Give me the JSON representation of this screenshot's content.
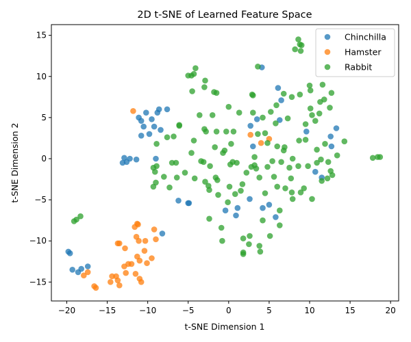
{
  "chart_data": {
    "type": "scatter",
    "title": "2D t-SNE of Learned Feature Space",
    "xlabel": "t-SNE Dimension 1",
    "ylabel": "t-SNE Dimension 2",
    "xlim": [
      -21.9,
      21.0
    ],
    "ylim": [
      -17.3,
      16.3
    ],
    "xticks": [
      -20,
      -15,
      -10,
      -5,
      0,
      5,
      10,
      15,
      20
    ],
    "yticks": [
      -15,
      -10,
      -5,
      0,
      5,
      10,
      15
    ],
    "grid": false,
    "legend_position": "top-right",
    "series": [
      {
        "name": "Chinchilla",
        "color": "#1f77b4",
        "points": [
          [
            -19.8,
            -11.3
          ],
          [
            -19.6,
            -11.5
          ],
          [
            -19.3,
            -13.5
          ],
          [
            -18.6,
            -13.8
          ],
          [
            -18.2,
            -13.4
          ],
          [
            -17.4,
            -13.1
          ],
          [
            -8.2,
            -9.1
          ],
          [
            -13.1,
            -0.5
          ],
          [
            -12.9,
            0.1
          ],
          [
            -12.6,
            -0.4
          ],
          [
            -12.2,
            0.0
          ],
          [
            -11.4,
            -0.1
          ],
          [
            -11.1,
            5.0
          ],
          [
            -10.8,
            4.6
          ],
          [
            -10.5,
            3.9
          ],
          [
            -10.2,
            5.6
          ],
          [
            -9.8,
            3.0
          ],
          [
            -9.5,
            4.8
          ],
          [
            -9.2,
            3.9
          ],
          [
            -8.8,
            5.6
          ],
          [
            -8.6,
            6.0
          ],
          [
            -8.4,
            3.5
          ],
          [
            -7.6,
            6.0
          ],
          [
            -9.0,
            0.0
          ],
          [
            -10.8,
            2.8
          ],
          [
            -6.2,
            -5.1
          ],
          [
            -5.0,
            -5.4
          ],
          [
            -4.9,
            -5.4
          ],
          [
            -0.4,
            -6.3
          ],
          [
            0.9,
            -6.9
          ],
          [
            1.1,
            -6.0
          ],
          [
            2.6,
            -4.9
          ],
          [
            2.7,
            4.0
          ],
          [
            3.0,
            1.5
          ],
          [
            3.5,
            4.8
          ],
          [
            4.1,
            11.1
          ],
          [
            4.2,
            -6.0
          ],
          [
            5.0,
            -5.6
          ],
          [
            5.8,
            -7.1
          ],
          [
            6.1,
            8.6
          ],
          [
            6.3,
            4.7
          ],
          [
            6.5,
            7.1
          ],
          [
            9.6,
            3.3
          ],
          [
            10.7,
            -1.6
          ],
          [
            11.5,
            -2.3
          ],
          [
            12.6,
            2.7
          ],
          [
            12.7,
            1.5
          ],
          [
            13.3,
            3.7
          ]
        ]
      },
      {
        "name": "Hamster",
        "color": "#ff7f0e",
        "points": [
          [
            -11.8,
            5.8
          ],
          [
            -17.9,
            -14.2
          ],
          [
            -17.4,
            -13.8
          ],
          [
            -16.6,
            -15.5
          ],
          [
            -16.4,
            -15.7
          ],
          [
            -14.6,
            -15.0
          ],
          [
            -14.4,
            -14.3
          ],
          [
            -13.9,
            -14.3
          ],
          [
            -13.7,
            -14.8
          ],
          [
            -13.5,
            -15.4
          ],
          [
            -13.7,
            -10.3
          ],
          [
            -13.5,
            -10.3
          ],
          [
            -12.9,
            -13.1
          ],
          [
            -12.7,
            -13.9
          ],
          [
            -12.8,
            -10.9
          ],
          [
            -12.4,
            -12.8
          ],
          [
            -12.0,
            -12.8
          ],
          [
            -11.6,
            -8.3
          ],
          [
            -11.3,
            -7.9
          ],
          [
            -11.2,
            -8.0
          ],
          [
            -11.4,
            -9.5
          ],
          [
            -11.1,
            -10.0
          ],
          [
            -11.3,
            -11.9
          ],
          [
            -11.0,
            -12.4
          ],
          [
            -11.5,
            -14.0
          ],
          [
            -11.0,
            -14.6
          ],
          [
            -10.8,
            -15.0
          ],
          [
            -10.4,
            -11.2
          ],
          [
            -10.3,
            -10.0
          ],
          [
            -10.1,
            -12.7
          ],
          [
            -9.5,
            -12.1
          ],
          [
            -9.0,
            -9.8
          ],
          [
            -9.2,
            -8.6
          ],
          [
            2.7,
            2.9
          ],
          [
            4.0,
            1.9
          ],
          [
            5.0,
            2.4
          ]
        ]
      },
      {
        "name": "Rabbit",
        "color": "#2ca02c",
        "points": [
          [
            -19.1,
            -7.6
          ],
          [
            -18.8,
            -7.4
          ],
          [
            -18.3,
            -7.0
          ],
          [
            -9.3,
            -3.4
          ],
          [
            -9.0,
            -2.9
          ],
          [
            -9.1,
            -1.6
          ],
          [
            -9.3,
            -1.1
          ],
          [
            -8.9,
            -0.9
          ],
          [
            -8.9,
            1.8
          ],
          [
            -8.0,
            -2.2
          ],
          [
            -7.6,
            2.6
          ],
          [
            -7.3,
            -3.5
          ],
          [
            -7.0,
            -0.5
          ],
          [
            -6.8,
            2.7
          ],
          [
            -6.5,
            -0.5
          ],
          [
            -6.4,
            -2.3
          ],
          [
            -6.1,
            4.0
          ],
          [
            -6.1,
            4.1
          ],
          [
            -5.4,
            -1.7
          ],
          [
            -5.0,
            10.1
          ],
          [
            -4.6,
            10.1
          ],
          [
            -4.3,
            10.3
          ],
          [
            -4.1,
            11.0
          ],
          [
            -4.5,
            8.2
          ],
          [
            -4.3,
            2.2
          ],
          [
            -4.6,
            0.7
          ],
          [
            -4.2,
            -2.4
          ],
          [
            -3.6,
            5.3
          ],
          [
            -3.4,
            -0.3
          ],
          [
            -3.1,
            -0.4
          ],
          [
            -3.0,
            8.7
          ],
          [
            -2.9,
            9.5
          ],
          [
            -3.0,
            3.6
          ],
          [
            -2.8,
            3.3
          ],
          [
            -2.9,
            -2.8
          ],
          [
            -2.5,
            -3.3
          ],
          [
            -2.4,
            -3.8
          ],
          [
            -2.4,
            -7.3
          ],
          [
            -2.3,
            -0.9
          ],
          [
            -2.0,
            5.3
          ],
          [
            -1.8,
            8.1
          ],
          [
            -1.5,
            8.0
          ],
          [
            -1.5,
            3.3
          ],
          [
            -1.7,
            1.4
          ],
          [
            -1.6,
            -2.3
          ],
          [
            -1.4,
            -2.6
          ],
          [
            -1.3,
            -4.4
          ],
          [
            -0.9,
            -8.4
          ],
          [
            -0.8,
            -10.0
          ],
          [
            -0.7,
            0.7
          ],
          [
            -0.5,
            1.0
          ],
          [
            -0.3,
            3.3
          ],
          [
            -0.1,
            -5.3
          ],
          [
            0.0,
            6.3
          ],
          [
            0.1,
            -3.4
          ],
          [
            0.2,
            -0.7
          ],
          [
            0.3,
            1.8
          ],
          [
            0.5,
            -0.4
          ],
          [
            0.6,
            3.3
          ],
          [
            0.8,
            -4.3
          ],
          [
            1.0,
            -0.5
          ],
          [
            1.3,
            5.6
          ],
          [
            1.5,
            -3.9
          ],
          [
            1.7,
            -3.1
          ],
          [
            1.8,
            -9.7
          ],
          [
            1.8,
            -11.4
          ],
          [
            1.8,
            -11.6
          ],
          [
            2.2,
            -1.7
          ],
          [
            2.5,
            -10.4
          ],
          [
            2.6,
            -9.4
          ],
          [
            2.8,
            -1.0
          ],
          [
            2.9,
            7.8
          ],
          [
            3.0,
            7.7
          ],
          [
            3.0,
            5.6
          ],
          [
            3.2,
            0.2
          ],
          [
            3.2,
            -0.8
          ],
          [
            3.4,
            -1.2
          ],
          [
            3.6,
            11.2
          ],
          [
            3.6,
            3.0
          ],
          [
            3.8,
            -2.3
          ],
          [
            3.8,
            -10.6
          ],
          [
            3.9,
            -11.3
          ],
          [
            4.2,
            -7.5
          ],
          [
            4.2,
            5.0
          ],
          [
            4.5,
            -4.2
          ],
          [
            4.5,
            3.1
          ],
          [
            4.8,
            1.9
          ],
          [
            4.8,
            -1.0
          ],
          [
            5.1,
            -9.4
          ],
          [
            5.2,
            5.7
          ],
          [
            5.4,
            -0.3
          ],
          [
            5.6,
            -2.2
          ],
          [
            5.8,
            4.3
          ],
          [
            5.9,
            6.5
          ],
          [
            6.0,
            1.5
          ],
          [
            6.0,
            -3.4
          ],
          [
            6.3,
            -6.3
          ],
          [
            6.3,
            -8.1
          ],
          [
            6.5,
            -0.4
          ],
          [
            6.8,
            7.9
          ],
          [
            6.8,
            1.0
          ],
          [
            6.9,
            1.4
          ],
          [
            7.0,
            -3.6
          ],
          [
            7.3,
            4.9
          ],
          [
            7.5,
            -1.1
          ],
          [
            7.7,
            -2.4
          ],
          [
            7.8,
            7.5
          ],
          [
            7.8,
            -4.1
          ],
          [
            7.9,
            -4.9
          ],
          [
            7.9,
            0.0
          ],
          [
            8.2,
            13.3
          ],
          [
            8.6,
            14.5
          ],
          [
            8.8,
            13.9
          ],
          [
            8.9,
            13.1
          ],
          [
            9.0,
            13.8
          ],
          [
            8.8,
            7.8
          ],
          [
            8.7,
            2.2
          ],
          [
            8.6,
            -0.9
          ],
          [
            8.9,
            -4.1
          ],
          [
            9.3,
            -3.6
          ],
          [
            9.5,
            4.2
          ],
          [
            9.5,
            2.3
          ],
          [
            9.8,
            -0.9
          ],
          [
            10.0,
            8.9
          ],
          [
            10.1,
            8.3
          ],
          [
            10.1,
            6.1
          ],
          [
            10.3,
            5.3
          ],
          [
            10.3,
            -4.9
          ],
          [
            10.7,
            4.6
          ],
          [
            10.9,
            1.1
          ],
          [
            10.9,
            -0.5
          ],
          [
            11.2,
            5.5
          ],
          [
            11.3,
            6.9
          ],
          [
            11.4,
            -0.1
          ],
          [
            11.5,
            -2.7
          ],
          [
            11.6,
            9.0
          ],
          [
            11.8,
            7.2
          ],
          [
            11.9,
            1.8
          ],
          [
            12.2,
            -2.4
          ],
          [
            12.3,
            -0.4
          ],
          [
            12.5,
            6.2
          ],
          [
            12.6,
            -1.5
          ],
          [
            12.7,
            8.0
          ],
          [
            12.8,
            -2.0
          ],
          [
            13.4,
            0.4
          ],
          [
            14.3,
            2.1
          ],
          [
            17.8,
            0.1
          ],
          [
            18.4,
            0.2
          ],
          [
            18.7,
            0.2
          ]
        ]
      }
    ]
  }
}
